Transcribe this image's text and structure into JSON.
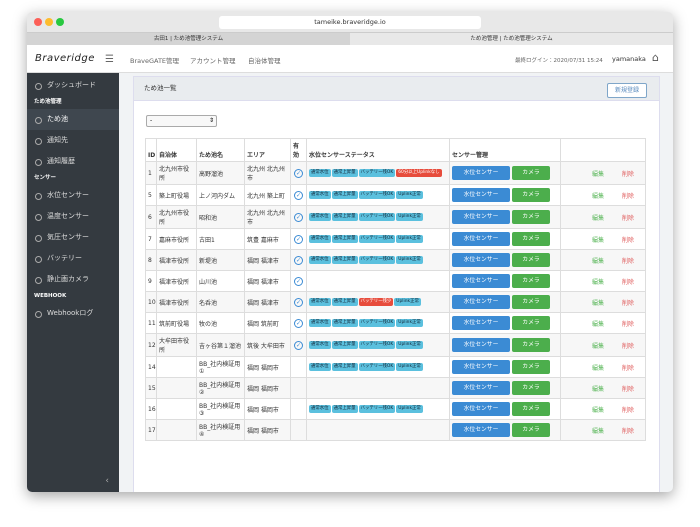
{
  "browser": {
    "url": "tameike.braveridge.io",
    "tabs": [
      "古田1 | ため池管理システム",
      "ため池管理 | ため池管理システム"
    ]
  },
  "header": {
    "logo": "Braveridge",
    "nav": [
      "BraveGATE管理",
      "アカウント管理",
      "自治体管理"
    ],
    "last_login": "最終ログイン：2020/07/31 15:24",
    "user": "yamanaka"
  },
  "sidebar": {
    "top": "ダッシュボード",
    "sections": [
      {
        "title": "ため池管理",
        "items": [
          "ため池",
          "通知先",
          "通知履歴"
        ]
      },
      {
        "title": "センサー",
        "items": [
          "水位センサー",
          "温度センサー",
          "気圧センサー",
          "バッテリー",
          "静止画カメラ"
        ]
      },
      {
        "title": "WEBHOOK",
        "items": [
          "Webhookログ"
        ]
      }
    ]
  },
  "page": {
    "title": "ため池一覧",
    "new_button": "新規登録",
    "filter": "-"
  },
  "table": {
    "headers": [
      "ID",
      "自治体",
      "ため池名",
      "エリア",
      "有効",
      "水位センサーステータス",
      "センサー管理"
    ],
    "actions": {
      "sensor": "水位センサー",
      "camera": "カメラ",
      "edit": "編集",
      "delete": "削除"
    },
    "rows": [
      {
        "id": 1,
        "municipality": "北九州市役所",
        "pond": "高野溜池",
        "area": "北九州 北九州市",
        "enabled": true,
        "statuses": [
          {
            "text": "通常水位",
            "alert": false
          },
          {
            "text": "通常上昇量",
            "alert": false
          },
          {
            "text": "バッテリー残OK",
            "alert": false
          },
          {
            "text": "60分以上Uplinkなし",
            "alert": true
          }
        ]
      },
      {
        "id": 5,
        "municipality": "築上町役場",
        "pond": "上ノ河内ダム",
        "area": "北九州 築上町",
        "enabled": true,
        "statuses": [
          {
            "text": "通常水位",
            "alert": false
          },
          {
            "text": "通常上昇量",
            "alert": false
          },
          {
            "text": "バッテリー残OK",
            "alert": false
          },
          {
            "text": "Uplink正常",
            "alert": false
          }
        ]
      },
      {
        "id": 6,
        "municipality": "北九州市役所",
        "pond": "昭和池",
        "area": "北九州 北九州市",
        "enabled": true,
        "statuses": [
          {
            "text": "通常水位",
            "alert": false
          },
          {
            "text": "通常上昇量",
            "alert": false
          },
          {
            "text": "バッテリー残OK",
            "alert": false
          },
          {
            "text": "Uplink正常",
            "alert": false
          }
        ]
      },
      {
        "id": 7,
        "municipality": "嘉麻市役所",
        "pond": "古田1",
        "area": "筑豊 嘉麻市",
        "enabled": true,
        "statuses": [
          {
            "text": "通常水位",
            "alert": false
          },
          {
            "text": "通常上昇量",
            "alert": false
          },
          {
            "text": "バッテリー残OK",
            "alert": false
          },
          {
            "text": "Uplink正常",
            "alert": false
          }
        ]
      },
      {
        "id": 8,
        "municipality": "福津市役所",
        "pond": "新堤池",
        "area": "福岡 福津市",
        "enabled": true,
        "statuses": [
          {
            "text": "通常水位",
            "alert": false
          },
          {
            "text": "通常上昇量",
            "alert": false
          },
          {
            "text": "バッテリー残OK",
            "alert": false
          },
          {
            "text": "Uplink正常",
            "alert": false
          }
        ]
      },
      {
        "id": 9,
        "municipality": "福津市役所",
        "pond": "山川池",
        "area": "福岡 福津市",
        "enabled": true,
        "statuses": []
      },
      {
        "id": 10,
        "municipality": "福津市役所",
        "pond": "名呑池",
        "area": "福岡 福津市",
        "enabled": true,
        "statuses": [
          {
            "text": "通常水位",
            "alert": false
          },
          {
            "text": "通常上昇量",
            "alert": false
          },
          {
            "text": "バッテリー残少",
            "alert": true
          },
          {
            "text": "Uplink正常",
            "alert": false
          }
        ]
      },
      {
        "id": 11,
        "municipality": "筑前町役場",
        "pond": "牧の池",
        "area": "福岡 筑前町",
        "enabled": true,
        "statuses": [
          {
            "text": "通常水位",
            "alert": false
          },
          {
            "text": "通常上昇量",
            "alert": false
          },
          {
            "text": "バッテリー残OK",
            "alert": false
          },
          {
            "text": "Uplink正常",
            "alert": false
          }
        ]
      },
      {
        "id": 12,
        "municipality": "大牟田市役所",
        "pond": "吉ヶ谷第１溜池",
        "area": "筑後 大牟田市",
        "enabled": true,
        "statuses": [
          {
            "text": "通常水位",
            "alert": false
          },
          {
            "text": "通常上昇量",
            "alert": false
          },
          {
            "text": "バッテリー残OK",
            "alert": false
          },
          {
            "text": "Uplink正常",
            "alert": false
          }
        ]
      },
      {
        "id": 14,
        "municipality": null,
        "pond": "BB_社内検証用①",
        "area": "福岡 福岡市",
        "enabled": false,
        "statuses": [
          {
            "text": "通常水位",
            "alert": false
          },
          {
            "text": "通常上昇量",
            "alert": false
          },
          {
            "text": "バッテリー残OK",
            "alert": false
          },
          {
            "text": "Uplink正常",
            "alert": false
          }
        ]
      },
      {
        "id": 15,
        "municipality": null,
        "pond": "BB_社内検証用②",
        "area": "福岡 福岡市",
        "enabled": false,
        "statuses": []
      },
      {
        "id": 16,
        "municipality": null,
        "pond": "BB_社内検証用③",
        "area": "福岡 福岡市",
        "enabled": false,
        "statuses": [
          {
            "text": "通常水位",
            "alert": false
          },
          {
            "text": "通常上昇量",
            "alert": false
          },
          {
            "text": "バッテリー残OK",
            "alert": false
          },
          {
            "text": "Uplink正常",
            "alert": false
          }
        ]
      },
      {
        "id": 17,
        "municipality": null,
        "pond": "BB_社内検証用④",
        "area": "福岡 福岡市",
        "enabled": false,
        "statuses": []
      }
    ]
  }
}
